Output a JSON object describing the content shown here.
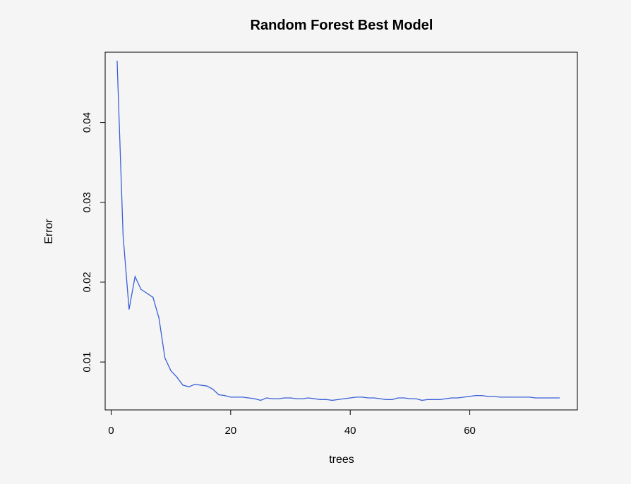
{
  "chart_data": {
    "type": "line",
    "title": "Random Forest Best Model",
    "xlabel": "trees",
    "ylabel": "Error",
    "xlim": [
      -1,
      78
    ],
    "ylim": [
      0.004,
      0.0488
    ],
    "x_ticks": [
      0,
      20,
      40,
      60
    ],
    "y_ticks": [
      0.01,
      0.02,
      0.03,
      0.04
    ],
    "x_tick_labels": [
      "0",
      "20",
      "40",
      "60"
    ],
    "y_tick_labels": [
      "0.01",
      "0.02",
      "0.03",
      "0.04"
    ],
    "grid": false,
    "line_color": "#3a5fd9",
    "series": [
      {
        "x": [
          1,
          2,
          3,
          4,
          5,
          6,
          7,
          8,
          9,
          10,
          11,
          12,
          13,
          14,
          15,
          16,
          17,
          18,
          19,
          20,
          21,
          22,
          23,
          24,
          25,
          26,
          27,
          28,
          29,
          30,
          31,
          32,
          33,
          34,
          35,
          36,
          37,
          38,
          39,
          40,
          41,
          42,
          43,
          44,
          45,
          46,
          47,
          48,
          49,
          50,
          51,
          52,
          53,
          54,
          55,
          56,
          57,
          58,
          59,
          60,
          61,
          62,
          63,
          64,
          65,
          66,
          67,
          68,
          69,
          70,
          71,
          72,
          73,
          74,
          75
        ],
        "values": [
          0.0477,
          0.0258,
          0.0166,
          0.0207,
          0.0191,
          0.0186,
          0.0181,
          0.0155,
          0.0105,
          0.0089,
          0.0081,
          0.0071,
          0.0069,
          0.0072,
          0.0071,
          0.007,
          0.0066,
          0.0059,
          0.0058,
          0.0056,
          0.0056,
          0.0056,
          0.0055,
          0.0054,
          0.0052,
          0.0055,
          0.0054,
          0.0054,
          0.0055,
          0.0055,
          0.0054,
          0.0054,
          0.0055,
          0.0054,
          0.0053,
          0.0053,
          0.0052,
          0.0053,
          0.0054,
          0.0055,
          0.0056,
          0.0056,
          0.0055,
          0.0055,
          0.0054,
          0.0053,
          0.0053,
          0.0055,
          0.0055,
          0.0054,
          0.0054,
          0.0052,
          0.0053,
          0.0053,
          0.0053,
          0.0054,
          0.0055,
          0.0055,
          0.0056,
          0.0057,
          0.0058,
          0.0058,
          0.0057,
          0.0057,
          0.0056,
          0.0056,
          0.0056,
          0.0056,
          0.0056,
          0.0056,
          0.0055,
          0.0055,
          0.0055,
          0.0055,
          0.0055
        ]
      }
    ]
  }
}
